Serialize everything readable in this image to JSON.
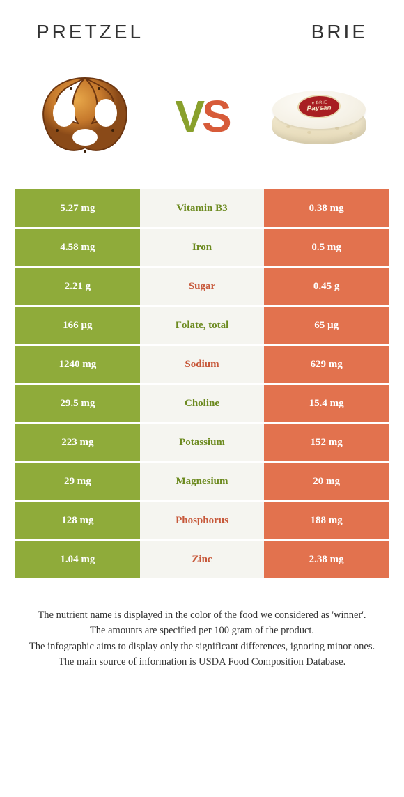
{
  "foods": {
    "left": {
      "name": "Pretzel",
      "color": "#8fab3a"
    },
    "right": {
      "name": "Brie",
      "color": "#e2724e"
    }
  },
  "vs": {
    "v": "V",
    "s": "S"
  },
  "colors": {
    "green_bg": "#8fab3a",
    "orange_bg": "#e2724e",
    "mid_bg": "#f5f5f0",
    "green_text": "#6c8a1f",
    "orange_text": "#c7583a"
  },
  "rows": [
    {
      "left": "5.27 mg",
      "label": "Vitamin B3",
      "right": "0.38 mg",
      "winner": "left"
    },
    {
      "left": "4.58 mg",
      "label": "Iron",
      "right": "0.5 mg",
      "winner": "left"
    },
    {
      "left": "2.21 g",
      "label": "Sugar",
      "right": "0.45 g",
      "winner": "right"
    },
    {
      "left": "166 µg",
      "label": "Folate, total",
      "right": "65 µg",
      "winner": "left"
    },
    {
      "left": "1240 mg",
      "label": "Sodium",
      "right": "629 mg",
      "winner": "right"
    },
    {
      "left": "29.5 mg",
      "label": "Choline",
      "right": "15.4 mg",
      "winner": "left"
    },
    {
      "left": "223 mg",
      "label": "Potassium",
      "right": "152 mg",
      "winner": "left"
    },
    {
      "left": "29 mg",
      "label": "Magnesium",
      "right": "20 mg",
      "winner": "left"
    },
    {
      "left": "128 mg",
      "label": "Phosphorus",
      "right": "188 mg",
      "winner": "right"
    },
    {
      "left": "1.04 mg",
      "label": "Zinc",
      "right": "2.38 mg",
      "winner": "right"
    }
  ],
  "footnote": {
    "l1": "The nutrient name is displayed in the color of the food we considered as 'winner'.",
    "l2": "The amounts are specified per 100 gram of the product.",
    "l3": "The infographic aims to display only the significant differences, ignoring minor ones.",
    "l4": "The main source of information is USDA Food Composition Database."
  },
  "brie_label": {
    "line1": "le BRIE",
    "line2": "Paysan"
  }
}
